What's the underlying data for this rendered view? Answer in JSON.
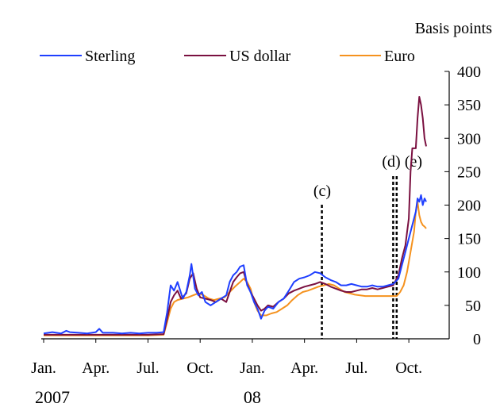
{
  "chart_data": {
    "type": "line",
    "unit_label": "Basis points",
    "ylim": [
      0,
      400
    ],
    "y_ticks": [
      0,
      50,
      100,
      150,
      200,
      250,
      300,
      350,
      400
    ],
    "x_range_months": [
      0,
      22.5
    ],
    "x_ticks": [
      {
        "label": "Jan.",
        "month": 0
      },
      {
        "label": "Apr.",
        "month": 3
      },
      {
        "label": "Jul.",
        "month": 6
      },
      {
        "label": "Oct.",
        "month": 9
      },
      {
        "label": "Jan.",
        "month": 12
      },
      {
        "label": "Apr.",
        "month": 15
      },
      {
        "label": "Jul.",
        "month": 18
      },
      {
        "label": "Oct.",
        "month": 21
      }
    ],
    "year_labels": [
      {
        "label": "2007",
        "month": 0.5
      },
      {
        "label": "08",
        "month": 12
      }
    ],
    "markers": [
      {
        "label": "(c)",
        "month": 16.0
      },
      {
        "label": "(d)",
        "month": 20.1
      },
      {
        "label": "(e)",
        "month": 20.3
      }
    ],
    "legend_position": "top",
    "series": [
      {
        "name": "Sterling",
        "color": "#1f3fff",
        "points": [
          [
            0,
            8
          ],
          [
            0.5,
            10
          ],
          [
            1.0,
            8
          ],
          [
            1.3,
            12
          ],
          [
            1.5,
            10
          ],
          [
            2.0,
            9
          ],
          [
            2.5,
            8
          ],
          [
            3.0,
            10
          ],
          [
            3.2,
            15
          ],
          [
            3.4,
            9
          ],
          [
            4.0,
            9
          ],
          [
            4.5,
            8
          ],
          [
            5.0,
            9
          ],
          [
            5.5,
            8
          ],
          [
            6.0,
            9
          ],
          [
            6.5,
            9
          ],
          [
            6.9,
            10
          ],
          [
            7.1,
            40
          ],
          [
            7.3,
            80
          ],
          [
            7.5,
            72
          ],
          [
            7.7,
            85
          ],
          [
            8.0,
            60
          ],
          [
            8.2,
            70
          ],
          [
            8.4,
            95
          ],
          [
            8.5,
            112
          ],
          [
            8.7,
            75
          ],
          [
            8.9,
            65
          ],
          [
            9.1,
            70
          ],
          [
            9.3,
            55
          ],
          [
            9.6,
            50
          ],
          [
            9.9,
            55
          ],
          [
            10.2,
            60
          ],
          [
            10.5,
            65
          ],
          [
            10.7,
            85
          ],
          [
            10.9,
            95
          ],
          [
            11.1,
            100
          ],
          [
            11.3,
            108
          ],
          [
            11.5,
            110
          ],
          [
            11.7,
            80
          ],
          [
            11.9,
            70
          ],
          [
            12.1,
            55
          ],
          [
            12.3,
            45
          ],
          [
            12.5,
            30
          ],
          [
            12.7,
            42
          ],
          [
            12.9,
            48
          ],
          [
            13.2,
            45
          ],
          [
            13.5,
            55
          ],
          [
            13.8,
            60
          ],
          [
            14.1,
            72
          ],
          [
            14.4,
            85
          ],
          [
            14.7,
            90
          ],
          [
            15.0,
            92
          ],
          [
            15.3,
            95
          ],
          [
            15.6,
            100
          ],
          [
            15.9,
            98
          ],
          [
            16.2,
            92
          ],
          [
            16.5,
            88
          ],
          [
            16.8,
            85
          ],
          [
            17.1,
            80
          ],
          [
            17.4,
            80
          ],
          [
            17.7,
            82
          ],
          [
            18.0,
            80
          ],
          [
            18.3,
            78
          ],
          [
            18.6,
            78
          ],
          [
            18.9,
            80
          ],
          [
            19.2,
            78
          ],
          [
            19.5,
            78
          ],
          [
            19.8,
            80
          ],
          [
            20.1,
            82
          ],
          [
            20.4,
            90
          ],
          [
            20.6,
            110
          ],
          [
            20.8,
            130
          ],
          [
            21.0,
            150
          ],
          [
            21.2,
            170
          ],
          [
            21.4,
            190
          ],
          [
            21.5,
            210
          ],
          [
            21.6,
            205
          ],
          [
            21.7,
            215
          ],
          [
            21.8,
            200
          ],
          [
            21.9,
            210
          ],
          [
            22.0,
            205
          ]
        ]
      },
      {
        "name": "US dollar",
        "color": "#7a1040",
        "points": [
          [
            0,
            6
          ],
          [
            1.0,
            6
          ],
          [
            2.0,
            6
          ],
          [
            3.0,
            6
          ],
          [
            4.0,
            6
          ],
          [
            5.0,
            6
          ],
          [
            6.0,
            6
          ],
          [
            6.9,
            7
          ],
          [
            7.1,
            30
          ],
          [
            7.3,
            55
          ],
          [
            7.5,
            65
          ],
          [
            7.7,
            72
          ],
          [
            7.9,
            60
          ],
          [
            8.2,
            68
          ],
          [
            8.4,
            90
          ],
          [
            8.6,
            98
          ],
          [
            8.8,
            75
          ],
          [
            9.0,
            62
          ],
          [
            9.3,
            60
          ],
          [
            9.6,
            58
          ],
          [
            9.9,
            55
          ],
          [
            10.2,
            60
          ],
          [
            10.5,
            55
          ],
          [
            10.7,
            70
          ],
          [
            10.9,
            85
          ],
          [
            11.1,
            92
          ],
          [
            11.3,
            98
          ],
          [
            11.5,
            100
          ],
          [
            11.7,
            82
          ],
          [
            11.9,
            70
          ],
          [
            12.1,
            60
          ],
          [
            12.3,
            50
          ],
          [
            12.5,
            42
          ],
          [
            12.7,
            45
          ],
          [
            12.9,
            50
          ],
          [
            13.2,
            48
          ],
          [
            13.5,
            55
          ],
          [
            13.8,
            60
          ],
          [
            14.1,
            68
          ],
          [
            14.4,
            72
          ],
          [
            14.7,
            75
          ],
          [
            15.0,
            78
          ],
          [
            15.3,
            80
          ],
          [
            15.6,
            82
          ],
          [
            15.9,
            85
          ],
          [
            16.2,
            82
          ],
          [
            16.5,
            78
          ],
          [
            16.8,
            75
          ],
          [
            17.1,
            72
          ],
          [
            17.4,
            70
          ],
          [
            17.7,
            70
          ],
          [
            18.0,
            72
          ],
          [
            18.3,
            74
          ],
          [
            18.6,
            74
          ],
          [
            18.9,
            76
          ],
          [
            19.2,
            74
          ],
          [
            19.5,
            76
          ],
          [
            19.8,
            78
          ],
          [
            20.1,
            80
          ],
          [
            20.4,
            95
          ],
          [
            20.6,
            120
          ],
          [
            20.8,
            140
          ],
          [
            21.0,
            180
          ],
          [
            21.1,
            250
          ],
          [
            21.2,
            285
          ],
          [
            21.3,
            285
          ],
          [
            21.4,
            285
          ],
          [
            21.5,
            330
          ],
          [
            21.6,
            362
          ],
          [
            21.7,
            350
          ],
          [
            21.8,
            330
          ],
          [
            21.9,
            300
          ],
          [
            22.0,
            288
          ]
        ]
      },
      {
        "name": "Euro",
        "color": "#f5921e",
        "points": [
          [
            0,
            5
          ],
          [
            1.0,
            5
          ],
          [
            2.0,
            5
          ],
          [
            3.0,
            5
          ],
          [
            4.0,
            5
          ],
          [
            5.0,
            5
          ],
          [
            6.0,
            5
          ],
          [
            6.9,
            6
          ],
          [
            7.1,
            25
          ],
          [
            7.3,
            45
          ],
          [
            7.5,
            55
          ],
          [
            7.7,
            58
          ],
          [
            8.0,
            60
          ],
          [
            8.3,
            62
          ],
          [
            8.6,
            65
          ],
          [
            8.9,
            68
          ],
          [
            9.2,
            65
          ],
          [
            9.5,
            60
          ],
          [
            9.8,
            58
          ],
          [
            10.1,
            60
          ],
          [
            10.4,
            62
          ],
          [
            10.7,
            70
          ],
          [
            11.0,
            78
          ],
          [
            11.3,
            85
          ],
          [
            11.5,
            90
          ],
          [
            11.7,
            85
          ],
          [
            11.9,
            75
          ],
          [
            12.1,
            55
          ],
          [
            12.3,
            42
          ],
          [
            12.5,
            35
          ],
          [
            12.8,
            35
          ],
          [
            13.1,
            38
          ],
          [
            13.4,
            40
          ],
          [
            13.7,
            45
          ],
          [
            14.0,
            50
          ],
          [
            14.3,
            58
          ],
          [
            14.6,
            65
          ],
          [
            14.9,
            70
          ],
          [
            15.2,
            72
          ],
          [
            15.5,
            75
          ],
          [
            15.8,
            78
          ],
          [
            16.1,
            80
          ],
          [
            16.4,
            82
          ],
          [
            16.7,
            80
          ],
          [
            17.0,
            75
          ],
          [
            17.3,
            70
          ],
          [
            17.6,
            68
          ],
          [
            17.9,
            66
          ],
          [
            18.2,
            65
          ],
          [
            18.5,
            64
          ],
          [
            18.8,
            64
          ],
          [
            19.1,
            64
          ],
          [
            19.4,
            64
          ],
          [
            19.7,
            64
          ],
          [
            20.0,
            64
          ],
          [
            20.3,
            64
          ],
          [
            20.5,
            70
          ],
          [
            20.7,
            80
          ],
          [
            20.9,
            100
          ],
          [
            21.1,
            130
          ],
          [
            21.3,
            160
          ],
          [
            21.4,
            190
          ],
          [
            21.5,
            205
          ],
          [
            21.6,
            185
          ],
          [
            21.7,
            175
          ],
          [
            21.8,
            170
          ],
          [
            21.9,
            168
          ],
          [
            22.0,
            165
          ]
        ]
      }
    ]
  }
}
